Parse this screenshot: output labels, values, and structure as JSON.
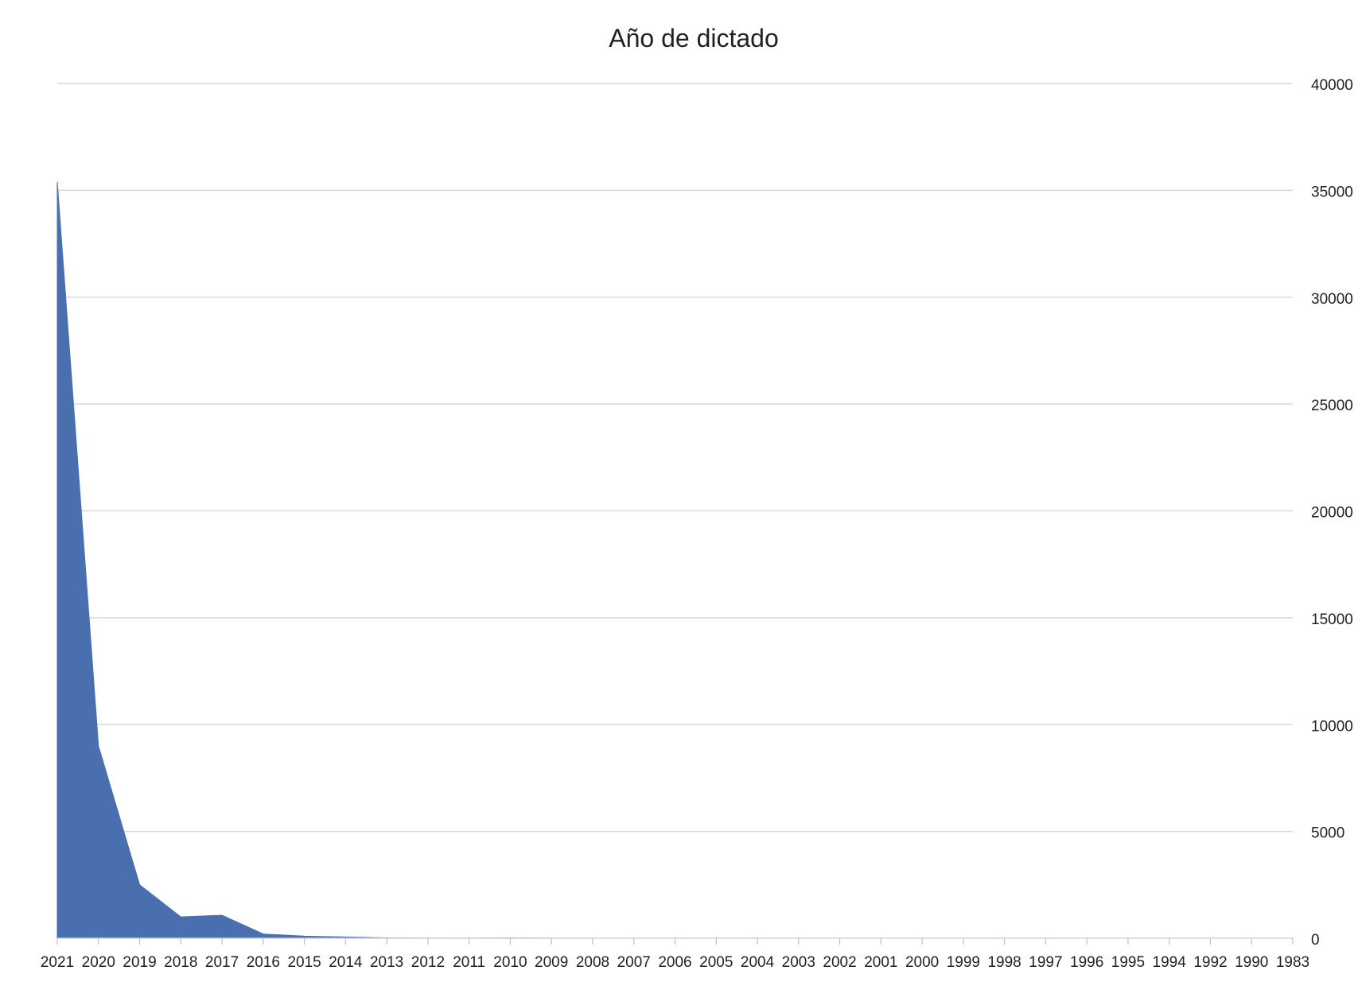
{
  "chart_data": {
    "type": "area",
    "title": "Año de dictado",
    "xlabel": "",
    "ylabel": "",
    "categories": [
      "2021",
      "2020",
      "2019",
      "2018",
      "2017",
      "2016",
      "2015",
      "2014",
      "2013",
      "2012",
      "2011",
      "2010",
      "2009",
      "2008",
      "2007",
      "2006",
      "2005",
      "2004",
      "2003",
      "2002",
      "2001",
      "2000",
      "1999",
      "1998",
      "1997",
      "1996",
      "1995",
      "1994",
      "1992",
      "1990",
      "1983"
    ],
    "series": [
      {
        "values": [
          35400,
          9000,
          2500,
          1000,
          1080,
          200,
          100,
          60,
          20,
          10,
          5,
          20,
          3,
          2,
          2,
          1,
          1,
          1,
          1,
          1,
          1,
          1,
          1,
          1,
          1,
          1,
          1,
          1,
          1,
          1,
          1
        ],
        "color": "#4a6fae"
      }
    ],
    "ylim": [
      0,
      40000
    ],
    "yticks": [
      0,
      5000,
      10000,
      15000,
      20000,
      25000,
      30000,
      35000,
      40000
    ],
    "y_axis_side": "right",
    "grid": true,
    "gridline_color": "#d9d9d9",
    "legend": "none"
  }
}
